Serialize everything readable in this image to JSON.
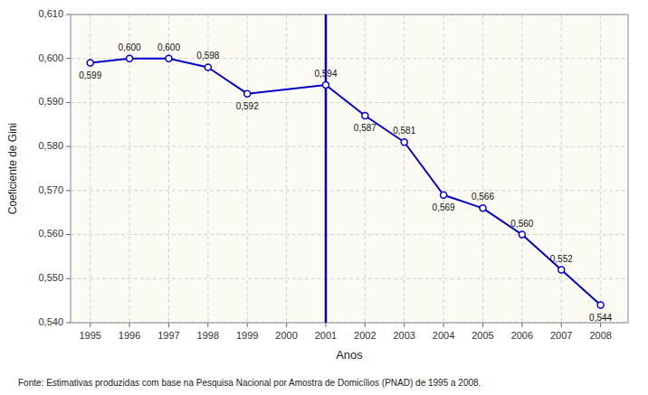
{
  "chart_data": {
    "type": "line",
    "xlabel": "Anos",
    "ylabel": "Coeficiente de Gini",
    "footnote": "Fonte: Estimativas produzidas com base na Pesquisa Nacional por Amostra de Domicílios (PNAD) de 1995 a 2008.",
    "x": [
      1995,
      1996,
      1997,
      1998,
      1999,
      2001,
      2002,
      2003,
      2004,
      2005,
      2006,
      2007,
      2008
    ],
    "values": [
      0.599,
      0.6,
      0.6,
      0.598,
      0.592,
      0.594,
      0.587,
      0.581,
      0.569,
      0.566,
      0.56,
      0.552,
      0.544
    ],
    "value_labels": [
      "0,599",
      "0,600",
      "0,600",
      "0,598",
      "0,592",
      "0,594",
      "0,587",
      "0,581",
      "0,569",
      "0,566",
      "0,560",
      "0,552",
      "0,544"
    ],
    "data_labels": true,
    "color": "#0000CC",
    "marker": "circle",
    "vline_x": 2001,
    "grid": true,
    "xlim": [
      1994.5,
      2008.7
    ],
    "xticks": [
      1995,
      1996,
      1997,
      1998,
      1999,
      2000,
      2001,
      2002,
      2003,
      2004,
      2005,
      2006,
      2007,
      2008
    ],
    "ylim": [
      0.54,
      0.61
    ],
    "yticks": [
      {
        "value": 0.54,
        "label": "0,540"
      },
      {
        "value": 0.55,
        "label": "0,550"
      },
      {
        "value": 0.56,
        "label": "0,560"
      },
      {
        "value": 0.57,
        "label": "0,570"
      },
      {
        "value": 0.58,
        "label": "0,580"
      },
      {
        "value": 0.59,
        "label": "0,590"
      },
      {
        "value": 0.6,
        "label": "0,600"
      },
      {
        "value": 0.61,
        "label": "0,610"
      }
    ]
  }
}
